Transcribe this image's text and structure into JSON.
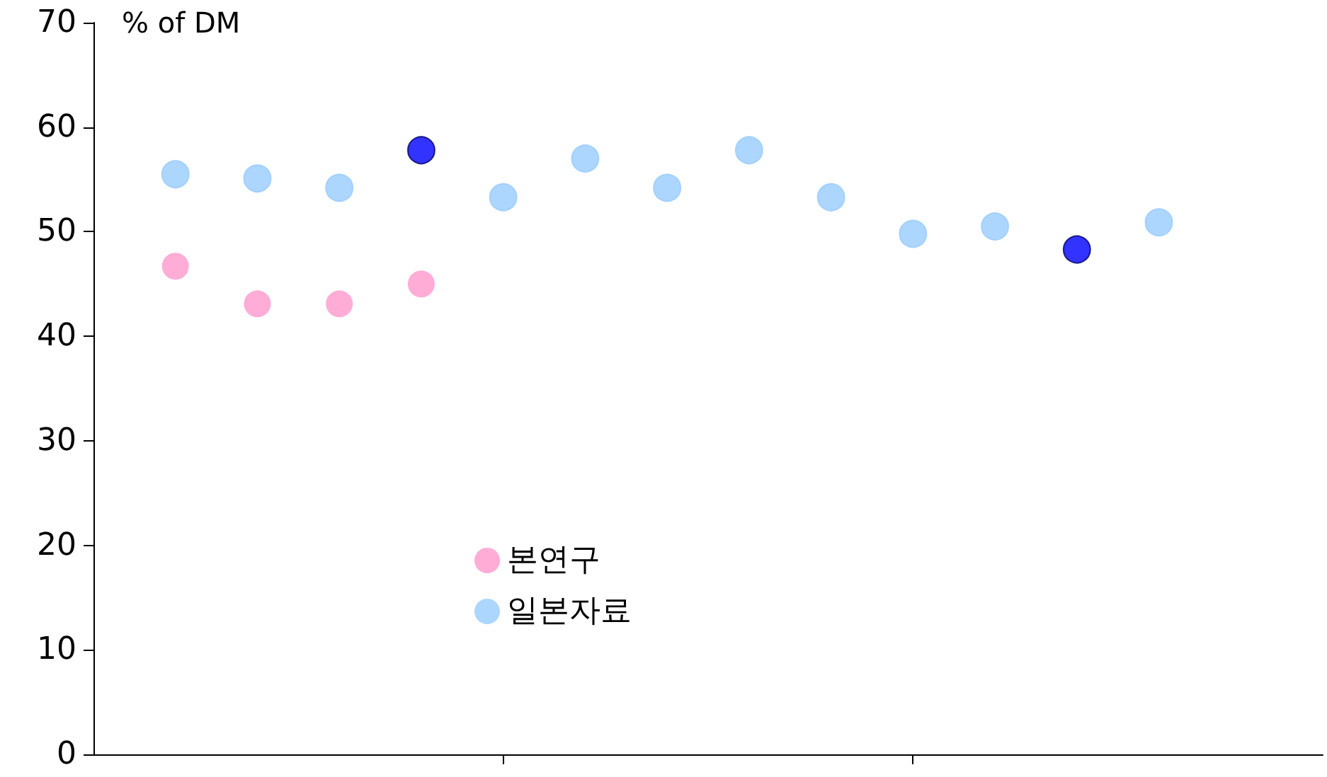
{
  "chart_data": {
    "type": "scatter",
    "ylabel": "% of DM",
    "categories": [
      null,
      null,
      null,
      null,
      null,
      null,
      null,
      null,
      null,
      null,
      null,
      null,
      null,
      null,
      null,
      null
    ],
    "series": [
      {
        "name": "본연구",
        "color": "#ff99cc",
        "values": [
          null,
          46.7,
          43.1,
          43.1,
          45.0,
          null,
          null,
          null,
          null,
          null,
          null,
          null,
          null,
          null,
          null,
          null
        ]
      },
      {
        "name": "일본자료",
        "color": "#99ccff",
        "colors": [
          null,
          "#99ccff",
          "#99ccff",
          "#99ccff",
          "#0000ff",
          "#99ccff",
          "#99ccff",
          "#99ccff",
          "#99ccff",
          "#99ccff",
          "#99ccff",
          "#99ccff",
          "#0000ff",
          "#99ccff",
          null,
          null
        ],
        "values": [
          null,
          55.5,
          55.1,
          54.2,
          57.8,
          53.3,
          57.0,
          54.2,
          57.8,
          53.3,
          49.8,
          50.5,
          48.3,
          50.9,
          null,
          null
        ]
      }
    ],
    "ylim": [
      0,
      70
    ],
    "yticks": [
      0,
      10,
      20,
      30,
      40,
      50,
      60,
      70
    ],
    "grid": false,
    "legend": "bottom",
    "marker": "circle"
  }
}
